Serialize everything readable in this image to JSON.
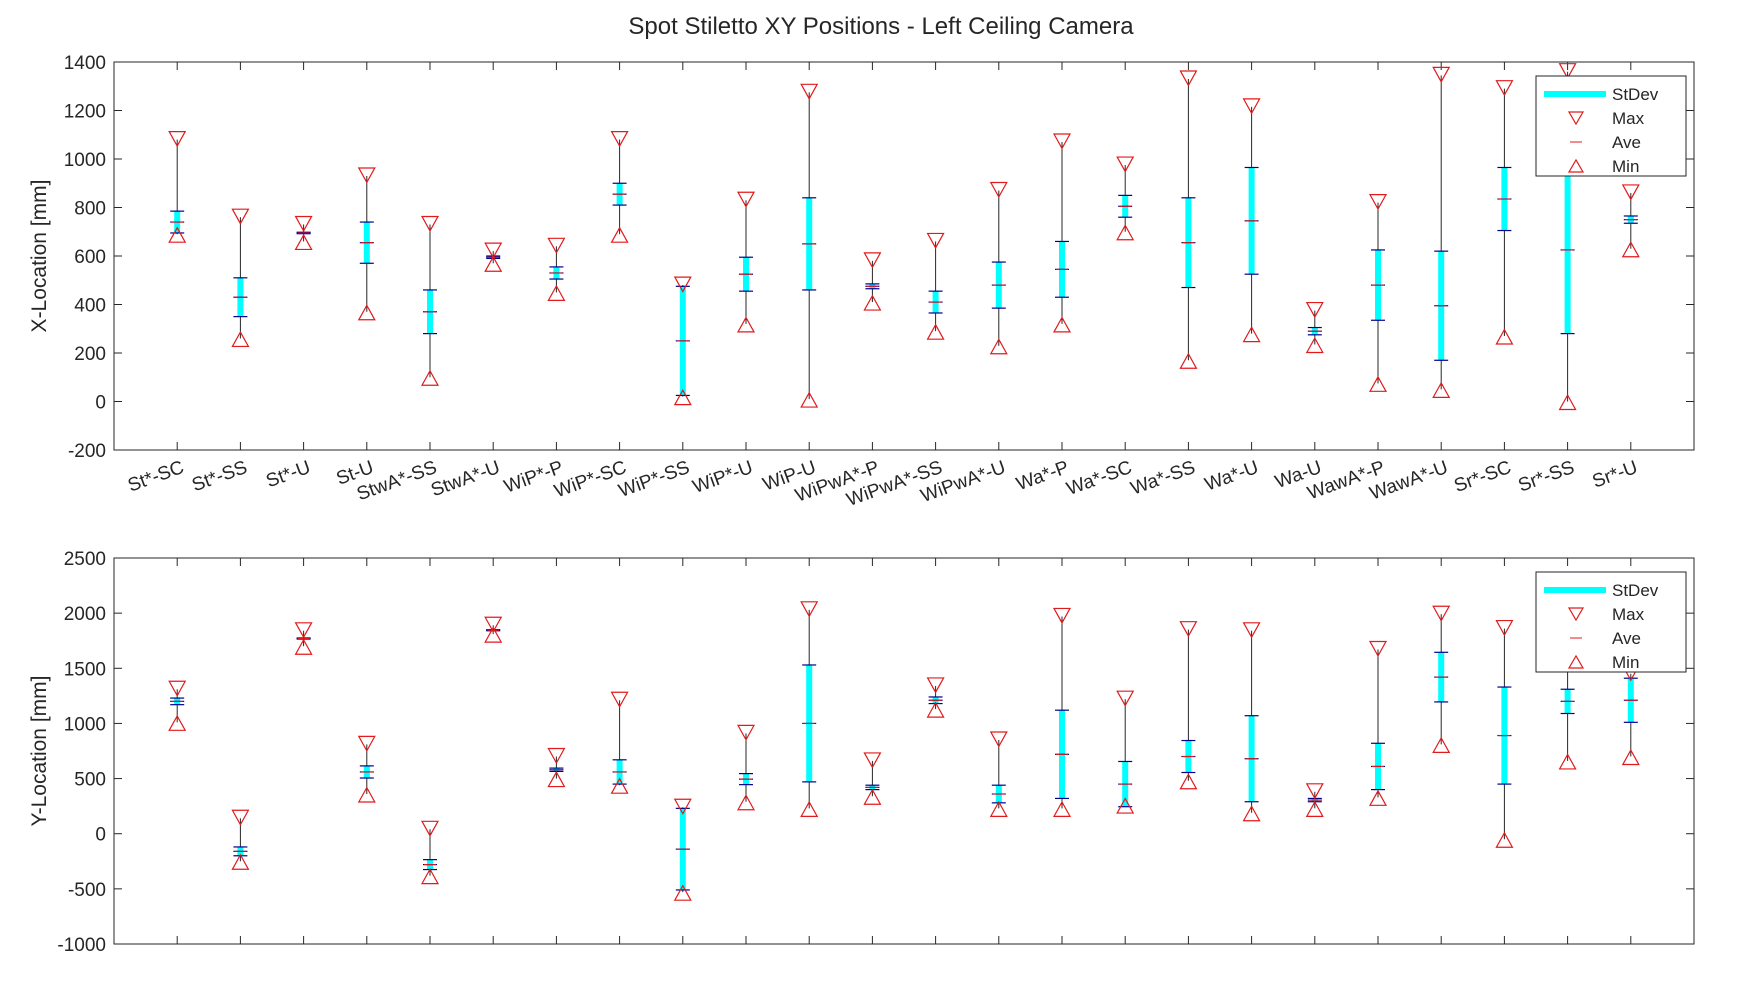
{
  "title": "Spot Stiletto XY Positions - Left Ceiling Camera",
  "legend": {
    "entries": [
      "StDev",
      "Max",
      "Ave",
      "Min"
    ],
    "placement": "top-right"
  },
  "colors": {
    "stdev": "#00ffff",
    "marker": "#e31a1c",
    "range_line": "#262626",
    "tick_mark": "#00008b",
    "axis": "#262626"
  },
  "chart_data": [
    {
      "type": "errorbar",
      "panel": "top",
      "xlabel": "",
      "ylabel": "X-Location [mm]",
      "ylim": [
        -200,
        1400
      ],
      "yticks": [
        -200,
        0,
        200,
        400,
        600,
        800,
        1000,
        1200,
        1400
      ],
      "grid": false,
      "categories": [
        "St*-SC",
        "St*-SS",
        "St*-U",
        "St-U",
        "StwA*-SS",
        "StwA*-U",
        "WiP*-P",
        "WiP*-SC",
        "WiP*-SS",
        "WiP*-U",
        "WiP-U",
        "WiPwA*-P",
        "WiPwA*-SS",
        "WiPwA*-U",
        "Wa*-P",
        "Wa*-SC",
        "Wa*-SS",
        "Wa*-U",
        "Wa-U",
        "WawA*-P",
        "WawA*-U",
        "Sr*-SC",
        "Sr*-SS",
        "Sr*-U"
      ],
      "max": [
        1080,
        760,
        730,
        930,
        730,
        620,
        640,
        1080,
        480,
        830,
        1275,
        580,
        660,
        870,
        1070,
        975,
        1330,
        1215,
        375,
        820,
        1345,
        1290,
        1360,
        860
      ],
      "min": [
        690,
        260,
        660,
        370,
        100,
        570,
        450,
        690,
        20,
        320,
        10,
        410,
        290,
        230,
        320,
        700,
        170,
        280,
        235,
        75,
        50,
        270,
        0,
        630
      ],
      "ave": [
        740,
        430,
        695,
        655,
        370,
        595,
        530,
        855,
        250,
        525,
        650,
        475,
        410,
        480,
        545,
        805,
        655,
        745,
        290,
        480,
        395,
        835,
        625,
        750
      ],
      "stdev": [
        45,
        80,
        3,
        85,
        90,
        5,
        25,
        45,
        225,
        70,
        190,
        10,
        45,
        95,
        115,
        45,
        185,
        220,
        15,
        145,
        225,
        130,
        345,
        15
      ]
    },
    {
      "type": "errorbar",
      "panel": "bottom",
      "xlabel": "",
      "ylabel": "Y-Location [mm]",
      "ylim": [
        -1000,
        2500
      ],
      "yticks": [
        -1000,
        -500,
        0,
        500,
        1000,
        1500,
        2000,
        2500
      ],
      "grid": false,
      "categories": [
        "St*-SC",
        "St*-SS",
        "St*-U",
        "St-U",
        "StwA*-SS",
        "StwA*-U",
        "WiP*-P",
        "WiP*-SC",
        "WiP*-SS",
        "WiP*-U",
        "WiP-U",
        "WiPwA*-P",
        "WiPwA*-SS",
        "WiPwA*-U",
        "Wa*-P",
        "Wa*-SC",
        "Wa*-SS",
        "Wa*-U",
        "Wa-U",
        "WawA*-P",
        "WawA*-U",
        "Sr*-SC",
        "Sr*-SS",
        "Sr*-U"
      ],
      "max": [
        1310,
        140,
        1840,
        810,
        40,
        1890,
        700,
        1210,
        240,
        910,
        2030,
        660,
        1340,
        850,
        1970,
        1220,
        1850,
        1840,
        380,
        1670,
        1990,
        1860,
        2050,
        1450
      ],
      "min": [
        1010,
        -250,
        1700,
        360,
        -380,
        1810,
        500,
        440,
        -530,
        290,
        230,
        340,
        1130,
        230,
        230,
        260,
        480,
        190,
        230,
        330,
        810,
        -50,
        660,
        700
      ],
      "ave": [
        1200,
        -160,
        1770,
        560,
        -280,
        1845,
        580,
        560,
        -140,
        495,
        1000,
        420,
        1210,
        360,
        720,
        450,
        700,
        680,
        305,
        610,
        1420,
        890,
        1200,
        1210
      ],
      "stdev": [
        30,
        40,
        5,
        55,
        45,
        5,
        15,
        110,
        370,
        50,
        530,
        20,
        30,
        80,
        400,
        205,
        145,
        390,
        15,
        210,
        225,
        440,
        110,
        200
      ]
    }
  ]
}
